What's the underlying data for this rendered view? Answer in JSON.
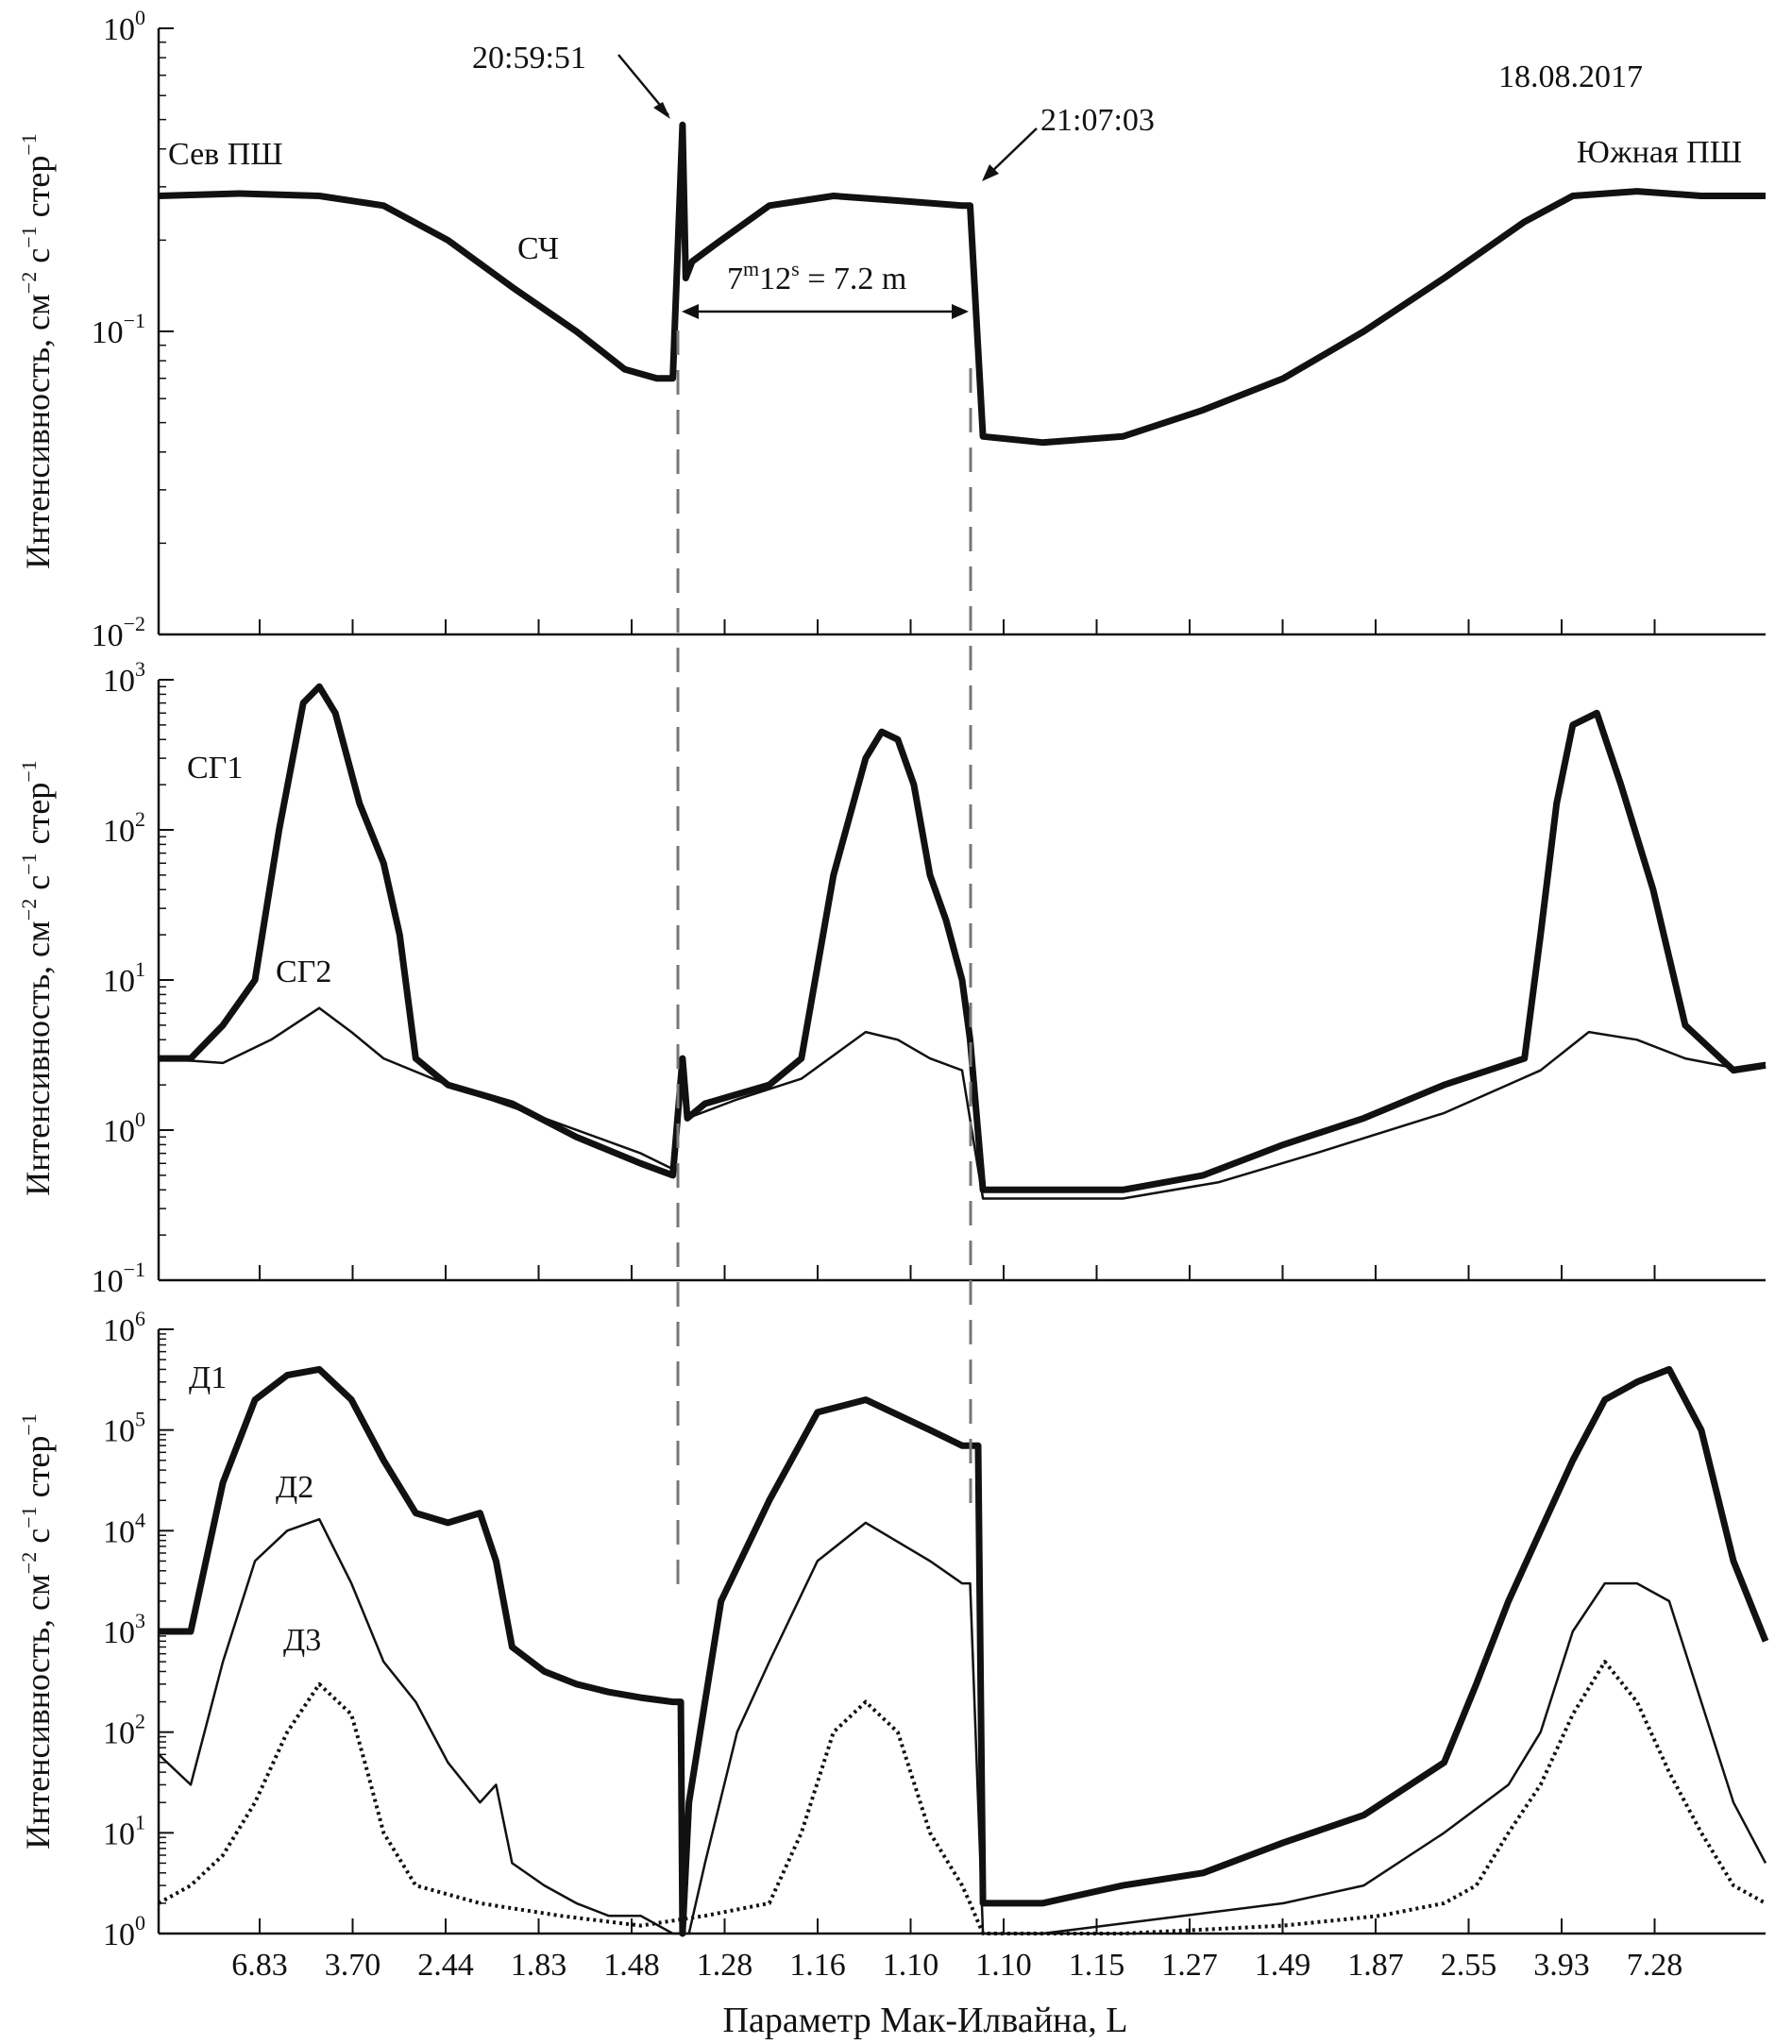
{
  "figure": {
    "date_label": "18.08.2017",
    "time_label_1": "20:59:51",
    "time_label_2": "21:07:03",
    "interval_label_parts": [
      "7",
      "m",
      "12",
      "s",
      " = 7.2 m"
    ],
    "north_label": "Сев ПШ",
    "south_label": "Южная ПШ",
    "xlabel": "Параметр Мак-Илвайна, L",
    "x_tick_labels": [
      "6.83",
      "3.70",
      "2.44",
      "1.83",
      "1.48",
      "1.28",
      "1.16",
      "1.10",
      "1.10",
      "1.15",
      "1.27",
      "1.49",
      "1.87",
      "2.55",
      "3.93",
      "7.28"
    ],
    "ylabel_parts": [
      "Интенсивность, см",
      "−2",
      " с",
      "−1",
      " стер",
      "−1"
    ],
    "colors": {
      "line": "#111111",
      "dashed": "#777777",
      "background": "#ffffff"
    }
  },
  "chart_data": [
    {
      "type": "line",
      "scale": "log",
      "ylim_exp": [
        -2,
        0
      ],
      "ytick_labels": [
        {
          "base": "10",
          "exp": "0"
        },
        {
          "base": "10",
          "exp": "−1"
        },
        {
          "base": "10",
          "exp": "−2"
        }
      ],
      "xlim": [
        0,
        100
      ],
      "series": [
        {
          "name": "СЧ",
          "style": "thick",
          "x": [
            0,
            5,
            10,
            14,
            18,
            22,
            26,
            29,
            31,
            32,
            32.6,
            32.8,
            33.2,
            35,
            38,
            42,
            46,
            50,
            50.5,
            51.3,
            55,
            60,
            65,
            70,
            75,
            80,
            85,
            88,
            92,
            96,
            100
          ],
          "y": [
            0.28,
            0.285,
            0.28,
            0.26,
            0.2,
            0.14,
            0.1,
            0.075,
            0.07,
            0.07,
            0.48,
            0.15,
            0.17,
            0.2,
            0.26,
            0.28,
            0.27,
            0.26,
            0.26,
            0.045,
            0.043,
            0.045,
            0.055,
            0.07,
            0.1,
            0.15,
            0.23,
            0.28,
            0.29,
            0.28,
            0.28
          ]
        }
      ],
      "labels": {
        "sch": "СЧ"
      }
    },
    {
      "type": "line",
      "scale": "log",
      "ylim_exp": [
        -1,
        3
      ],
      "ytick_labels": [
        {
          "base": "10",
          "exp": "3"
        },
        {
          "base": "10",
          "exp": "2"
        },
        {
          "base": "10",
          "exp": "1"
        },
        {
          "base": "10",
          "exp": "0"
        },
        {
          "base": "10",
          "exp": "−1"
        }
      ],
      "xlim": [
        0,
        100
      ],
      "series": [
        {
          "name": "СГ1",
          "style": "thick",
          "x": [
            0,
            2,
            4,
            6,
            7.5,
            9,
            10,
            11,
            12.5,
            14,
            15,
            16,
            18,
            22,
            26,
            30,
            32,
            32.6,
            32.9,
            34,
            38,
            40,
            42,
            44,
            45,
            46,
            47,
            48,
            49,
            50,
            50.5,
            51.3,
            55,
            60,
            65,
            70,
            75,
            80,
            85,
            86,
            87,
            88,
            89.5,
            91,
            93,
            95,
            98,
            100
          ],
          "y": [
            3,
            3,
            5,
            10,
            100,
            700,
            900,
            600,
            150,
            60,
            20,
            3,
            2,
            1.5,
            0.9,
            0.6,
            0.5,
            3,
            1.2,
            1.5,
            2,
            3,
            50,
            300,
            450,
            400,
            200,
            50,
            25,
            10,
            4,
            0.4,
            0.4,
            0.4,
            0.5,
            0.8,
            1.2,
            2,
            3,
            20,
            150,
            500,
            600,
            200,
            40,
            5,
            2.5,
            2.7
          ]
        },
        {
          "name": "СГ2",
          "style": "thin",
          "x": [
            0,
            4,
            7,
            10,
            12,
            14,
            18,
            24,
            30,
            32,
            32.6,
            32.9,
            36,
            40,
            44,
            46,
            48,
            50,
            51.3,
            55,
            60,
            66,
            72,
            80,
            86,
            89,
            92,
            95,
            98,
            100
          ],
          "y": [
            3,
            2.8,
            4,
            6.5,
            4.5,
            3,
            2,
            1.2,
            0.7,
            0.55,
            3,
            1.2,
            1.6,
            2.2,
            4.5,
            4,
            3,
            2.5,
            0.35,
            0.35,
            0.35,
            0.45,
            0.7,
            1.3,
            2.5,
            4.5,
            4,
            3,
            2.6,
            2.8
          ]
        }
      ],
      "labels": {
        "sg1": "СГ1",
        "sg2": "СГ2"
      }
    },
    {
      "type": "line",
      "scale": "log",
      "ylim_exp": [
        0,
        6
      ],
      "ytick_labels": [
        {
          "base": "10",
          "exp": "6"
        },
        {
          "base": "10",
          "exp": "5"
        },
        {
          "base": "10",
          "exp": "4"
        },
        {
          "base": "10",
          "exp": "3"
        },
        {
          "base": "10",
          "exp": "2"
        },
        {
          "base": "10",
          "exp": "1"
        },
        {
          "base": "10",
          "exp": "0"
        }
      ],
      "xlim": [
        0,
        100
      ],
      "series": [
        {
          "name": "Д1",
          "style": "thick",
          "x": [
            0,
            2,
            4,
            6,
            8,
            10,
            12,
            14,
            16,
            18,
            20,
            21,
            22,
            24,
            26,
            28,
            30,
            32,
            32.5,
            32.6,
            33,
            35,
            38,
            41,
            44,
            48,
            50,
            50.5,
            51,
            51.3,
            55,
            60,
            65,
            70,
            75,
            80,
            82,
            84,
            86,
            88,
            90,
            92,
            94,
            96,
            98,
            100
          ],
          "y": [
            1000,
            1000,
            30000,
            200000,
            350000,
            400000,
            200000,
            50000,
            15000,
            12000,
            15000,
            5000,
            700,
            400,
            300,
            250,
            220,
            200,
            200,
            1,
            20,
            2000,
            20000,
            150000,
            200000,
            100000,
            70000,
            70000,
            70000,
            2,
            2,
            3,
            4,
            8,
            15,
            50,
            300,
            2000,
            10000,
            50000,
            200000,
            300000,
            400000,
            100000,
            5000,
            800
          ]
        },
        {
          "name": "Д2",
          "style": "thin",
          "x": [
            0,
            2,
            4,
            6,
            8,
            10,
            12,
            14,
            16,
            18,
            20,
            21,
            22,
            24,
            26,
            28,
            30,
            32,
            33,
            34,
            36,
            38,
            41,
            44,
            48,
            50,
            50.5,
            51.3,
            55,
            70,
            75,
            80,
            84,
            86,
            88,
            90,
            92,
            94,
            96,
            98,
            100
          ],
          "y": [
            60,
            30,
            500,
            5000,
            10000,
            13000,
            3000,
            500,
            200,
            50,
            20,
            30,
            5,
            3,
            2,
            1.5,
            1.5,
            1,
            1,
            5,
            100,
            500,
            5000,
            12000,
            5000,
            3000,
            3000,
            1,
            1,
            2,
            3,
            10,
            30,
            100,
            1000,
            3000,
            3000,
            2000,
            200,
            20,
            5
          ]
        },
        {
          "name": "Д3",
          "style": "dotted",
          "x": [
            0,
            2,
            4,
            6,
            8,
            10,
            12,
            13,
            14,
            16,
            20,
            25,
            30,
            34,
            38,
            40,
            42,
            44,
            46,
            48,
            50,
            50.5,
            51.3,
            60,
            70,
            76,
            80,
            82,
            84,
            86,
            88,
            90,
            92,
            94,
            96,
            98,
            100
          ],
          "y": [
            2,
            3,
            6,
            20,
            100,
            300,
            150,
            40,
            10,
            3,
            2,
            1.5,
            1.2,
            1.5,
            2,
            10,
            100,
            200,
            100,
            10,
            3,
            2,
            1,
            1,
            1.2,
            1.5,
            2,
            3,
            10,
            30,
            150,
            500,
            200,
            40,
            10,
            3,
            2
          ]
        }
      ],
      "labels": {
        "d1": "Д1",
        "d2": "Д2",
        "d3": "Д3"
      }
    }
  ]
}
